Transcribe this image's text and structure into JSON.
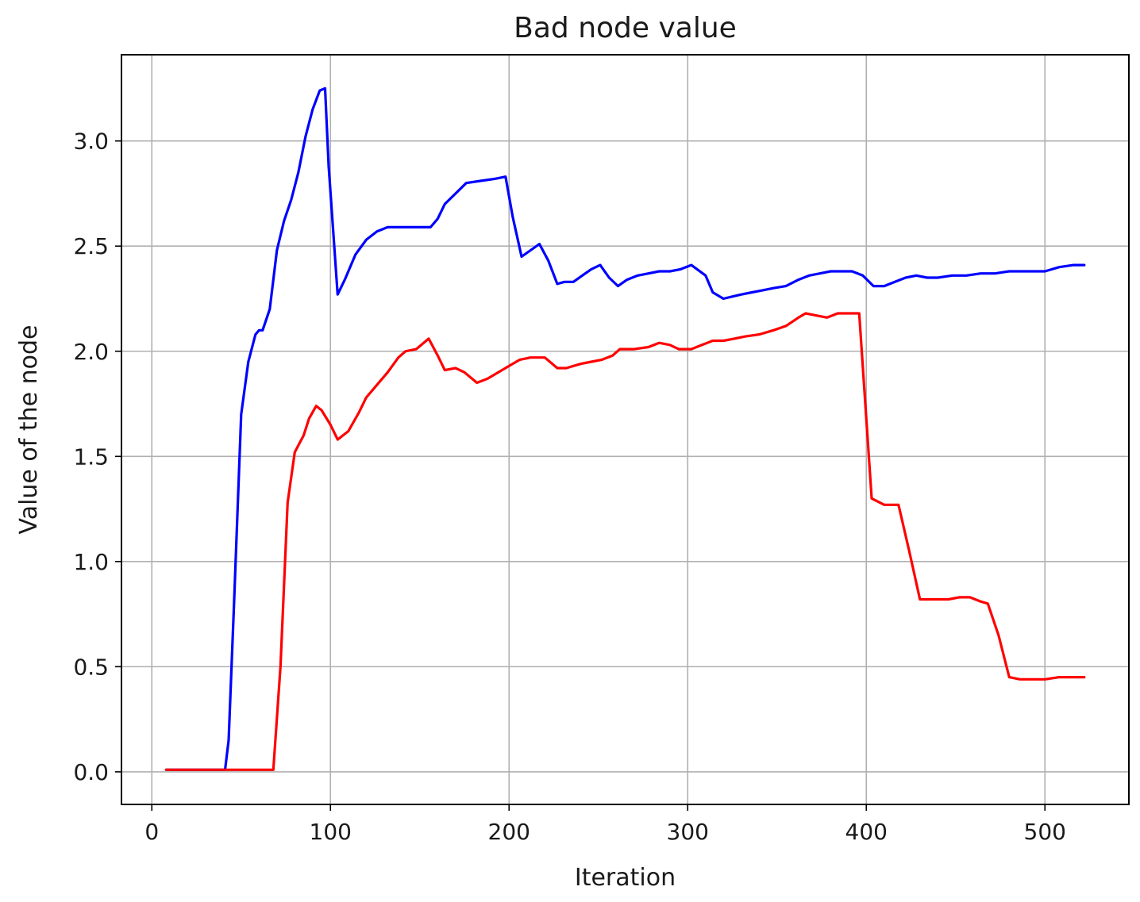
{
  "chart_data": {
    "type": "line",
    "title": "Bad node value",
    "xlabel": "Iteration",
    "ylabel": "Value of the node",
    "xlim": [
      -17,
      547
    ],
    "ylim": [
      -0.155,
      3.41
    ],
    "xticks": [
      0,
      100,
      200,
      300,
      400,
      500
    ],
    "xtick_labels": [
      "0",
      "100",
      "200",
      "300",
      "400",
      "500"
    ],
    "yticks": [
      0.0,
      0.5,
      1.0,
      1.5,
      2.0,
      2.5,
      3.0
    ],
    "ytick_labels": [
      "0.0",
      "0.5",
      "1.0",
      "1.5",
      "2.0",
      "2.5",
      "3.0"
    ],
    "grid": true,
    "series": [
      {
        "color": "#0000ff",
        "x": [
          8,
          41,
          43,
          46,
          50,
          54,
          58,
          60,
          62,
          66,
          70,
          74,
          78,
          82,
          86,
          90,
          94,
          97,
          99,
          104,
          108,
          114,
          120,
          126,
          132,
          140,
          148,
          156,
          160,
          164,
          170,
          176,
          184,
          192,
          198,
          202,
          207,
          212,
          217,
          222,
          227,
          231,
          236,
          241,
          246,
          251,
          256,
          261,
          266,
          272,
          278,
          284,
          290,
          296,
          302,
          310,
          314,
          320,
          325,
          330,
          336,
          342,
          348,
          355,
          362,
          368,
          374,
          380,
          386,
          392,
          398,
          404,
          410,
          416,
          422,
          428,
          434,
          440,
          448,
          456,
          464,
          472,
          480,
          490,
          500,
          508,
          516,
          522
        ],
        "y": [
          0.01,
          0.01,
          0.15,
          0.8,
          1.7,
          1.95,
          2.08,
          2.1,
          2.1,
          2.2,
          2.48,
          2.62,
          2.72,
          2.85,
          3.02,
          3.15,
          3.24,
          3.25,
          2.88,
          2.27,
          2.34,
          2.46,
          2.53,
          2.57,
          2.59,
          2.59,
          2.59,
          2.59,
          2.63,
          2.7,
          2.75,
          2.8,
          2.81,
          2.82,
          2.83,
          2.64,
          2.45,
          2.48,
          2.51,
          2.43,
          2.32,
          2.33,
          2.33,
          2.36,
          2.39,
          2.41,
          2.35,
          2.31,
          2.34,
          2.36,
          2.37,
          2.38,
          2.38,
          2.39,
          2.41,
          2.36,
          2.28,
          2.25,
          2.26,
          2.27,
          2.28,
          2.29,
          2.3,
          2.31,
          2.34,
          2.36,
          2.37,
          2.38,
          2.38,
          2.38,
          2.36,
          2.31,
          2.31,
          2.33,
          2.35,
          2.36,
          2.35,
          2.35,
          2.36,
          2.36,
          2.37,
          2.37,
          2.38,
          2.38,
          2.38,
          2.4,
          2.41,
          2.41
        ]
      },
      {
        "color": "#ff0000",
        "x": [
          8,
          41,
          68,
          72,
          76,
          80,
          85,
          88,
          92,
          95,
          100,
          104,
          110,
          116,
          120,
          126,
          132,
          138,
          142,
          148,
          155,
          160,
          164,
          170,
          175,
          182,
          188,
          194,
          200,
          206,
          212,
          220,
          227,
          232,
          240,
          246,
          252,
          258,
          262,
          270,
          278,
          284,
          290,
          295,
          302,
          308,
          314,
          320,
          326,
          332,
          340,
          348,
          355,
          362,
          366,
          372,
          378,
          384,
          390,
          396,
          403,
          410,
          418,
          424,
          430,
          440,
          446,
          452,
          458,
          464,
          468,
          474,
          480,
          486,
          494,
          500,
          508,
          516,
          522
        ],
        "y": [
          0.01,
          0.01,
          0.01,
          0.5,
          1.28,
          1.52,
          1.6,
          1.68,
          1.74,
          1.72,
          1.65,
          1.58,
          1.62,
          1.71,
          1.78,
          1.84,
          1.9,
          1.97,
          2.0,
          2.01,
          2.06,
          1.98,
          1.91,
          1.92,
          1.9,
          1.85,
          1.87,
          1.9,
          1.93,
          1.96,
          1.97,
          1.97,
          1.92,
          1.92,
          1.94,
          1.95,
          1.96,
          1.98,
          2.01,
          2.01,
          2.02,
          2.04,
          2.03,
          2.01,
          2.01,
          2.03,
          2.05,
          2.05,
          2.06,
          2.07,
          2.08,
          2.1,
          2.12,
          2.16,
          2.18,
          2.17,
          2.16,
          2.18,
          2.18,
          2.18,
          1.3,
          1.27,
          1.27,
          1.05,
          0.82,
          0.82,
          0.82,
          0.83,
          0.83,
          0.81,
          0.8,
          0.65,
          0.45,
          0.44,
          0.44,
          0.44,
          0.45,
          0.45,
          0.45
        ]
      }
    ]
  }
}
